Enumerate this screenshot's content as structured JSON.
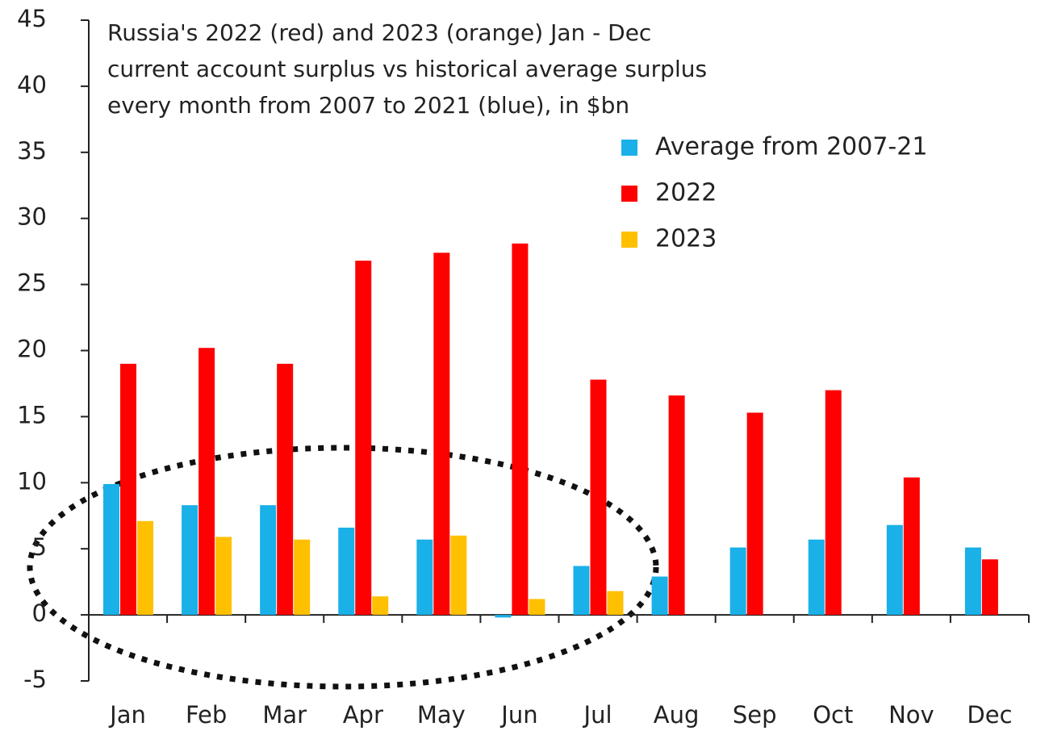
{
  "chart_data": {
    "type": "bar",
    "title": [
      "Russia's 2022  (red) and 2023  (orange) Jan - Dec",
      "current account surplus vs historical average surplus",
      "every month from 2007  to 2021  (blue), in $bn"
    ],
    "categories": [
      "Jan",
      "Feb",
      "Mar",
      "Apr",
      "May",
      "Jun",
      "Jul",
      "Aug",
      "Sep",
      "Oct",
      "Nov",
      "Dec"
    ],
    "series": [
      {
        "name": "Average from 2007-21",
        "color": "#1ab0e8",
        "values": [
          9.9,
          8.3,
          8.3,
          6.6,
          5.7,
          -0.2,
          3.7,
          2.9,
          5.1,
          5.7,
          6.8,
          5.1
        ]
      },
      {
        "name": "2022",
        "color": "#ff0000",
        "values": [
          19,
          20.2,
          19,
          26.8,
          27.4,
          28.1,
          17.8,
          16.6,
          15.3,
          17,
          10.4,
          4.2
        ]
      },
      {
        "name": "2023",
        "color": "#ffc000",
        "values": [
          7.1,
          5.9,
          5.7,
          1.4,
          6,
          1.2,
          1.8,
          null,
          null,
          null,
          null,
          null
        ]
      }
    ],
    "ylim": [
      -5,
      45
    ],
    "yticks": [
      -5,
      0,
      5,
      10,
      15,
      20,
      25,
      30,
      35,
      40,
      45
    ]
  }
}
